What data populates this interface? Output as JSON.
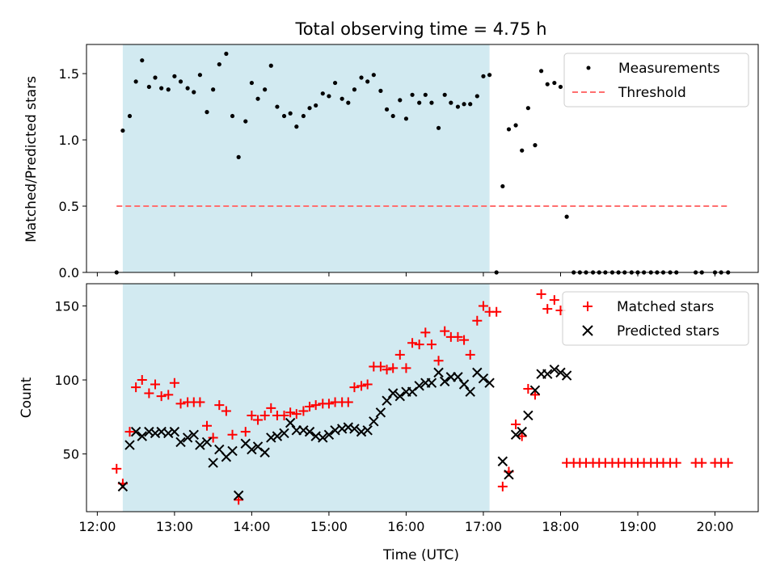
{
  "figure_title": "Total observing time = 4.75 h",
  "colors": {
    "highlight": "#add8e6",
    "measurement": "#000000",
    "threshold": "#ff6f6f",
    "matched": "#ff0000",
    "predicted": "#000000"
  },
  "x_ticks": [
    "12:00",
    "13:00",
    "14:00",
    "15:00",
    "16:00",
    "17:00",
    "18:00",
    "19:00",
    "20:00"
  ],
  "chart_data": [
    {
      "type": "scatter",
      "panel": "top",
      "ylabel": "Matched/Predicted stars",
      "xlabel": "",
      "x_unit": "hours after 12:00 UTC",
      "xlim": [
        -0.14,
        8.56
      ],
      "ylim": [
        0,
        1.72
      ],
      "yticks": [
        "0.0",
        "0.5",
        "1.0",
        "1.5"
      ],
      "ytick_values": [
        0,
        0.5,
        1.0,
        1.5
      ],
      "highlight_span": [
        0.33,
        5.08
      ],
      "legend_position": "upper right",
      "series": [
        {
          "name": "Measurements",
          "style": "dot",
          "x": [
            0.25,
            0.33,
            0.42,
            0.5,
            0.58,
            0.67,
            0.75,
            0.83,
            0.92,
            1.0,
            1.08,
            1.17,
            1.25,
            1.33,
            1.42,
            1.5,
            1.58,
            1.67,
            1.75,
            1.83,
            1.92,
            2.0,
            2.08,
            2.17,
            2.25,
            2.33,
            2.42,
            2.5,
            2.58,
            2.67,
            2.75,
            2.83,
            2.92,
            3.0,
            3.08,
            3.17,
            3.25,
            3.33,
            3.42,
            3.5,
            3.58,
            3.67,
            3.75,
            3.83,
            3.92,
            4.0,
            4.08,
            4.17,
            4.25,
            4.33,
            4.42,
            4.5,
            4.58,
            4.67,
            4.75,
            4.83,
            4.92,
            5.0,
            5.08,
            5.17,
            5.25,
            5.33,
            5.42,
            5.5,
            5.58,
            5.67,
            5.75,
            5.83,
            5.92,
            6.0,
            6.08,
            6.17,
            6.25,
            6.33,
            6.42,
            6.5,
            6.58,
            6.67,
            6.75,
            6.83,
            6.92,
            7.0,
            7.08,
            7.17,
            7.25,
            7.33,
            7.42,
            7.5,
            7.75,
            7.83,
            8.0,
            8.08,
            8.17
          ],
          "y": [
            0.0,
            1.07,
            1.18,
            1.44,
            1.6,
            1.4,
            1.47,
            1.39,
            1.38,
            1.48,
            1.44,
            1.39,
            1.36,
            1.49,
            1.21,
            1.38,
            1.57,
            1.65,
            1.18,
            0.87,
            1.14,
            1.43,
            1.31,
            1.38,
            1.56,
            1.25,
            1.18,
            1.2,
            1.1,
            1.18,
            1.24,
            1.26,
            1.35,
            1.33,
            1.43,
            1.31,
            1.28,
            1.38,
            1.47,
            1.44,
            1.49,
            1.37,
            1.23,
            1.18,
            1.3,
            1.16,
            1.34,
            1.28,
            1.34,
            1.28,
            1.09,
            1.34,
            1.28,
            1.25,
            1.27,
            1.27,
            1.33,
            1.48,
            1.49,
            0.0,
            0.65,
            1.08,
            1.11,
            0.92,
            1.24,
            0.96,
            1.52,
            1.42,
            1.43,
            1.4,
            0.42,
            0.0,
            0.0,
            0.0,
            0.0,
            0.0,
            0.0,
            0.0,
            0.0,
            0.0,
            0.0,
            0.0,
            0.0,
            0.0,
            0.0,
            0.0,
            0.0,
            0.0,
            0.0,
            0.0,
            0.0,
            0.0,
            0.0
          ]
        },
        {
          "name": "Threshold",
          "style": "dashed-line",
          "x": [
            0.25,
            8.17
          ],
          "y": [
            0.5,
            0.5
          ]
        }
      ]
    },
    {
      "type": "scatter",
      "panel": "bottom",
      "ylabel": "Count",
      "xlabel": "Time (UTC)",
      "x_unit": "hours after 12:00 UTC",
      "xlim": [
        -0.14,
        8.56
      ],
      "ylim": [
        11,
        165
      ],
      "yticks": [
        "50",
        "100",
        "150"
      ],
      "ytick_values": [
        50,
        100,
        150
      ],
      "highlight_span": [
        0.33,
        5.08
      ],
      "legend_position": "upper right",
      "series": [
        {
          "name": "Matched stars",
          "marker": "+",
          "x": [
            0.25,
            0.33,
            0.42,
            0.5,
            0.58,
            0.67,
            0.75,
            0.83,
            0.92,
            1.0,
            1.08,
            1.17,
            1.25,
            1.33,
            1.42,
            1.5,
            1.58,
            1.67,
            1.75,
            1.83,
            1.92,
            2.0,
            2.08,
            2.17,
            2.25,
            2.33,
            2.42,
            2.5,
            2.58,
            2.67,
            2.75,
            2.83,
            2.92,
            3.0,
            3.08,
            3.17,
            3.25,
            3.33,
            3.42,
            3.5,
            3.58,
            3.67,
            3.75,
            3.83,
            3.92,
            4.0,
            4.08,
            4.17,
            4.25,
            4.33,
            4.42,
            4.5,
            4.58,
            4.67,
            4.75,
            4.83,
            4.92,
            5.0,
            5.08,
            5.17,
            5.25,
            5.33,
            5.42,
            5.5,
            5.58,
            5.67,
            5.75,
            5.83,
            5.92,
            6.0,
            6.08,
            6.17,
            6.25,
            6.33,
            6.42,
            6.5,
            6.58,
            6.67,
            6.75,
            6.83,
            6.92,
            7.0,
            7.08,
            7.17,
            7.25,
            7.33,
            7.42,
            7.5,
            7.75,
            7.83,
            8.0,
            8.08,
            8.17
          ],
          "y": [
            40,
            30,
            65,
            95,
            100,
            91,
            97,
            89,
            90,
            98,
            84,
            85,
            85,
            85,
            69,
            61,
            83,
            79,
            63,
            19,
            65,
            76,
            73,
            76,
            81,
            76,
            76,
            78,
            77,
            79,
            82,
            83,
            84,
            84,
            85,
            85,
            85,
            95,
            96,
            97,
            109,
            109,
            107,
            108,
            117,
            108,
            125,
            124,
            132,
            124,
            113,
            133,
            129,
            129,
            127,
            117,
            140,
            150,
            146,
            146,
            28,
            38,
            70,
            62,
            94,
            90,
            158,
            148,
            154,
            147,
            44,
            44,
            44,
            44,
            44,
            44,
            44,
            44,
            44,
            44,
            44,
            44,
            44,
            44,
            44,
            44,
            44,
            44,
            44,
            44,
            44,
            44,
            44
          ]
        },
        {
          "name": "Predicted stars",
          "marker": "x",
          "x": [
            0.33,
            0.42,
            0.5,
            0.58,
            0.67,
            0.75,
            0.83,
            0.92,
            1.0,
            1.08,
            1.17,
            1.25,
            1.33,
            1.42,
            1.5,
            1.58,
            1.67,
            1.75,
            1.83,
            1.92,
            2.0,
            2.08,
            2.17,
            2.25,
            2.33,
            2.42,
            2.5,
            2.58,
            2.67,
            2.75,
            2.83,
            2.92,
            3.0,
            3.08,
            3.17,
            3.25,
            3.33,
            3.42,
            3.5,
            3.58,
            3.67,
            3.75,
            3.83,
            3.92,
            4.0,
            4.08,
            4.17,
            4.25,
            4.33,
            4.42,
            4.5,
            4.58,
            4.67,
            4.75,
            4.83,
            4.92,
            5.0,
            5.08,
            5.25,
            5.33,
            5.42,
            5.5,
            5.58,
            5.67,
            5.75,
            5.83,
            5.92,
            6.0,
            6.08
          ],
          "y": [
            28,
            56,
            65,
            62,
            65,
            64,
            65,
            64,
            65,
            58,
            61,
            63,
            56,
            58,
            44,
            53,
            48,
            52,
            22,
            57,
            53,
            55,
            51,
            61,
            62,
            64,
            71,
            66,
            66,
            65,
            62,
            61,
            63,
            66,
            67,
            68,
            67,
            65,
            66,
            72,
            78,
            86,
            91,
            89,
            92,
            92,
            96,
            98,
            98,
            105,
            99,
            102,
            102,
            97,
            92,
            105,
            101,
            98,
            45,
            36,
            63,
            65,
            76,
            93,
            104,
            104,
            107,
            105,
            103
          ]
        }
      ]
    }
  ]
}
